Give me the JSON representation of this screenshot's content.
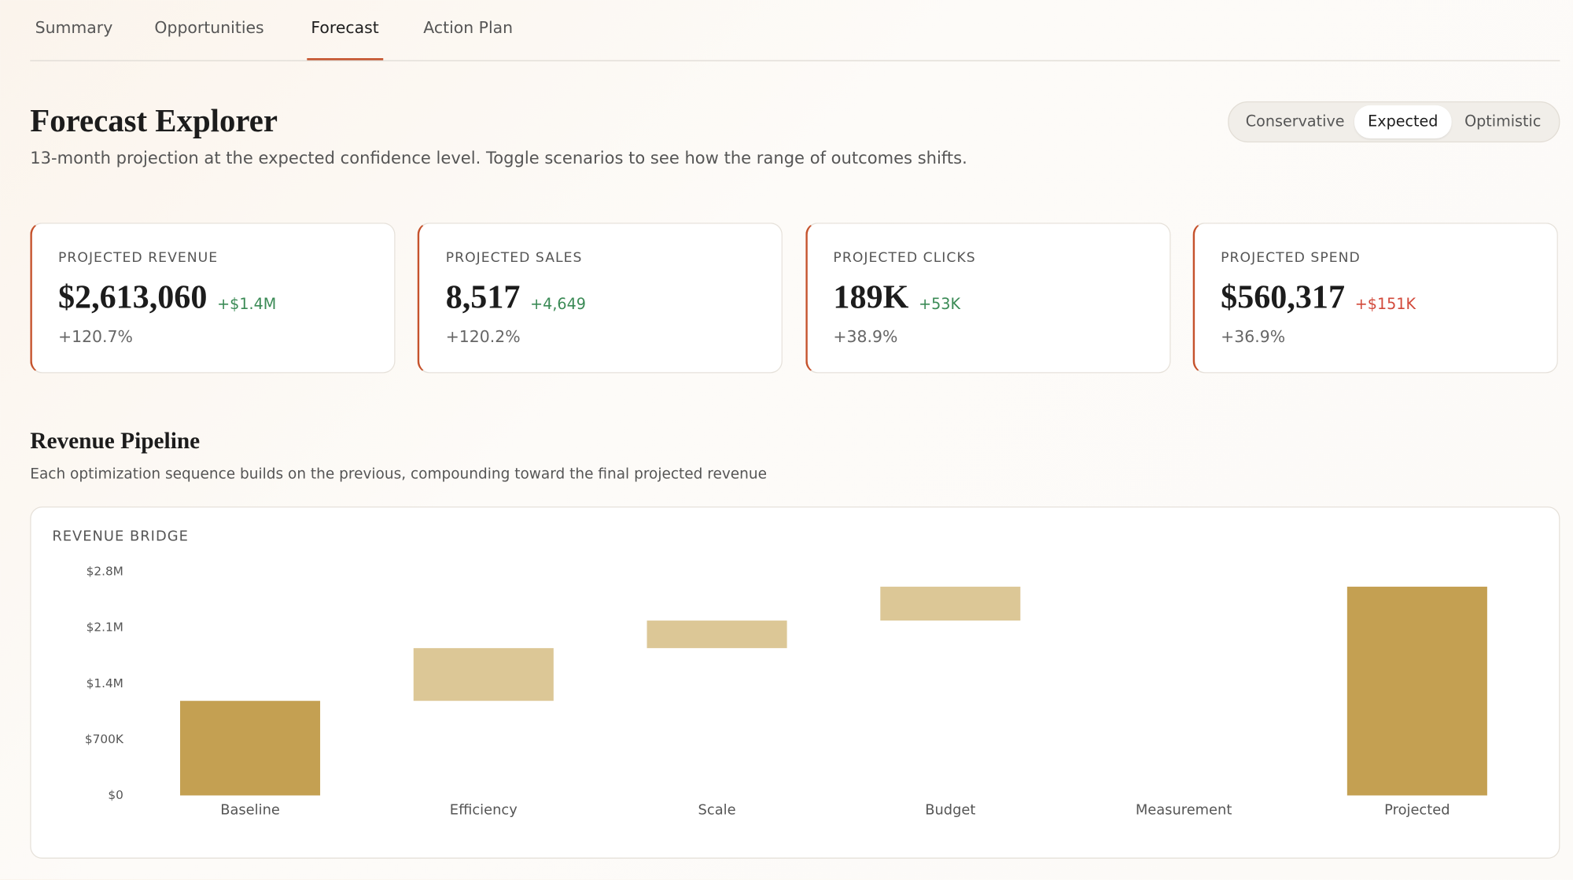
{
  "tabs": [
    "Summary",
    "Opportunities",
    "Forecast",
    "Action Plan"
  ],
  "active_tab": 2,
  "header": {
    "title": "Forecast Explorer",
    "subtitle": "13-month projection at the expected confidence level. Toggle scenarios to see how the range of outcomes shifts."
  },
  "scenarios": [
    "Conservative",
    "Expected",
    "Optimistic"
  ],
  "active_scenario": 1,
  "kpis": [
    {
      "label": "PROJECTED REVENUE",
      "value": "$2,613,060",
      "change": "+$1.4M",
      "tone": "positive",
      "pct": "+120.7%"
    },
    {
      "label": "PROJECTED SALES",
      "value": "8,517",
      "change": "+4,649",
      "tone": "positive",
      "pct": "+120.2%"
    },
    {
      "label": "PROJECTED CLICKS",
      "value": "189K",
      "change": "+53K",
      "tone": "positive",
      "pct": "+38.9%"
    },
    {
      "label": "PROJECTED SPEND",
      "value": "$560,317",
      "change": "+$151K",
      "tone": "negative",
      "pct": "+36.9%"
    }
  ],
  "section": {
    "title": "Revenue Pipeline",
    "subtitle": "Each optimization sequence builds on the previous, compounding toward the final projected revenue"
  },
  "chart_data": {
    "type": "waterfall",
    "title": "REVENUE BRIDGE",
    "categories": [
      "Baseline",
      "Efficiency",
      "Scale",
      "Budget",
      "Measurement",
      "Projected"
    ],
    "values": [
      1184000,
      660000,
      345000,
      424060,
      0,
      2613060
    ],
    "totals": [
      true,
      false,
      false,
      false,
      false,
      true
    ],
    "color": "#c4a052",
    "delta_color": "#dcc796",
    "ylim": [
      0,
      2800000
    ],
    "yticks": [
      {
        "value": 0,
        "label": "$0"
      },
      {
        "value": 700000,
        "label": "$700K"
      },
      {
        "value": 1400000,
        "label": "$1.4M"
      },
      {
        "value": 2100000,
        "label": "$2.1M"
      },
      {
        "value": 2800000,
        "label": "$2.8M"
      }
    ]
  }
}
